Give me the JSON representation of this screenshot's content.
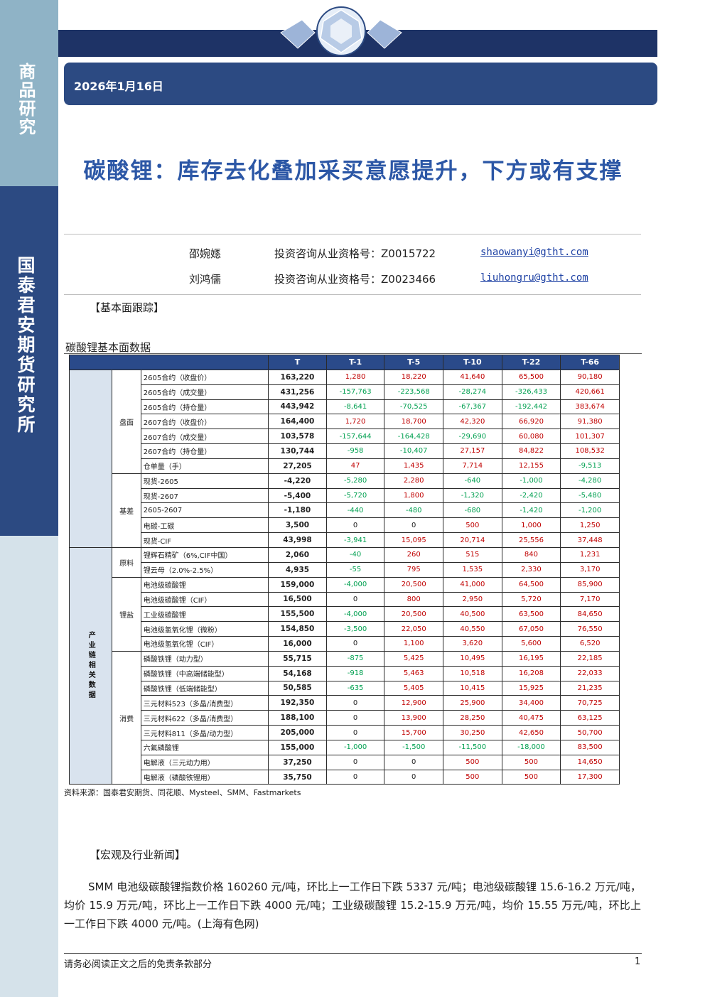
{
  "sidebar": {
    "category": "商品研究",
    "institute": "国泰君安期货研究所"
  },
  "header": {
    "date": "2026年1月16日"
  },
  "report": {
    "title": "碳酸锂：库存去化叠加采买意愿提升，下方或有支撑"
  },
  "authors": [
    {
      "name": "邵婉嫕",
      "cert": "投资咨询从业资格号：Z0015722",
      "email": "shaowanyi@gtht.com"
    },
    {
      "name": "刘鸿儒",
      "cert": "投资咨询从业资格号：Z0023466",
      "email": "liuhongru@gtht.com"
    }
  ],
  "sections": {
    "fundamentals": "【基本面跟踪】",
    "table_caption": "碳酸锂基本面数据",
    "source": "资料来源：国泰君安期货、同花顺、Mysteel、SMM、Fastmarkets",
    "news": "【宏观及行业新闻】",
    "news_paragraph": "SMM 电池级碳酸锂指数价格 160260 元/吨，环比上一工作日下跌 5337 元/吨；电池级碳酸锂 15.6-16.2 万元/吨，均价 15.9 万元/吨，环比上一工作日下跌 4000 元/吨；工业级碳酸锂 15.2-15.9 万元/吨，均价 15.55 万元/吨，环比上一工作日下跌 4000 元/吨。(上海有色网)"
  },
  "table": {
    "headers": [
      "T",
      "T-1",
      "T-5",
      "T-10",
      "T-22",
      "T-66"
    ],
    "categories": {
      "chain": "产业链相关数据",
      "futures": "盘面",
      "basis": "基差",
      "raw": "原料",
      "salt": "锂盐",
      "consume": "消费"
    },
    "rows": [
      [
        "2605合约（收盘价）",
        "163,220",
        "1,280",
        "18,220",
        "41,640",
        "65,500",
        "90,180"
      ],
      [
        "2605合约（成交量）",
        "431,256",
        "-157,763",
        "-223,568",
        "-28,274",
        "-326,433",
        "420,661"
      ],
      [
        "2605合约（持仓量）",
        "443,942",
        "-8,641",
        "-70,525",
        "-67,367",
        "-192,442",
        "383,674"
      ],
      [
        "2607合约（收盘价）",
        "164,400",
        "1,720",
        "18,700",
        "42,320",
        "66,920",
        "91,380"
      ],
      [
        "2607合约（成交量）",
        "103,578",
        "-157,644",
        "-164,428",
        "-29,690",
        "60,080",
        "101,307"
      ],
      [
        "2607合约（持仓量）",
        "130,744",
        "-958",
        "-10,407",
        "27,157",
        "84,822",
        "108,532"
      ],
      [
        "仓单量（手）",
        "27,205",
        "47",
        "1,435",
        "7,714",
        "12,155",
        "-9,513"
      ],
      [
        "现货-2605",
        "-4,220",
        "-5,280",
        "2,280",
        "-640",
        "-1,000",
        "-4,280"
      ],
      [
        "现货-2607",
        "-5,400",
        "-5,720",
        "1,800",
        "-1,320",
        "-2,420",
        "-5,480"
      ],
      [
        "2605-2607",
        "-1,180",
        "-440",
        "-480",
        "-680",
        "-1,420",
        "-1,200"
      ],
      [
        "电碳-工碳",
        "3,500",
        "0",
        "0",
        "500",
        "1,000",
        "1,250"
      ],
      [
        "现货-CIF",
        "43,998",
        "-3,941",
        "15,095",
        "20,714",
        "25,556",
        "37,448"
      ],
      [
        "锂辉石精矿（6%,CIF中国）",
        "2,060",
        "-40",
        "260",
        "515",
        "840",
        "1,231"
      ],
      [
        "锂云母（2.0%-2.5%）",
        "4,935",
        "-55",
        "795",
        "1,535",
        "2,330",
        "3,170"
      ],
      [
        "电池级碳酸锂",
        "159,000",
        "-4,000",
        "20,500",
        "41,000",
        "64,500",
        "85,900"
      ],
      [
        "电池级碳酸锂（CIF）",
        "16,500",
        "0",
        "800",
        "2,950",
        "5,720",
        "7,170"
      ],
      [
        "工业级碳酸锂",
        "155,500",
        "-4,000",
        "20,500",
        "40,500",
        "63,500",
        "84,650"
      ],
      [
        "电池级氢氧化锂（微粉）",
        "154,850",
        "-3,500",
        "22,050",
        "40,550",
        "67,050",
        "76,550"
      ],
      [
        "电池级氢氧化锂（CIF）",
        "16,000",
        "0",
        "1,100",
        "3,620",
        "5,600",
        "6,520"
      ],
      [
        "磷酸铁锂（动力型）",
        "55,715",
        "-875",
        "5,425",
        "10,495",
        "16,195",
        "22,185"
      ],
      [
        "磷酸铁锂（中高端储能型）",
        "54,168",
        "-918",
        "5,463",
        "10,518",
        "16,208",
        "22,033"
      ],
      [
        "磷酸铁锂（低端储能型）",
        "50,585",
        "-635",
        "5,405",
        "10,415",
        "15,925",
        "21,235"
      ],
      [
        "三元材料523（多晶/消费型）",
        "192,350",
        "0",
        "12,900",
        "25,900",
        "34,400",
        "70,725"
      ],
      [
        "三元材料622（多晶/消费型）",
        "188,100",
        "0",
        "13,900",
        "28,250",
        "40,475",
        "63,125"
      ],
      [
        "三元材料811（多晶/动力型）",
        "205,000",
        "0",
        "15,700",
        "30,250",
        "42,650",
        "50,700"
      ],
      [
        "六氟磷酸锂",
        "155,000",
        "-1,000",
        "-1,500",
        "-11,500",
        "-18,000",
        "83,500"
      ],
      [
        "电解液（三元动力用）",
        "37,250",
        "0",
        "0",
        "500",
        "500",
        "14,650"
      ],
      [
        "电解液（磷酸铁锂用）",
        "35,750",
        "0",
        "0",
        "500",
        "500",
        "17,300"
      ]
    ]
  },
  "footer": {
    "disclaimer": "请务必阅读正文之后的免责条款部分",
    "page": "1"
  },
  "colors": {
    "brand_dark": "#1e3366",
    "brand": "#2c4a82",
    "title_blue": "#2c57a6",
    "up": "#c00000",
    "down": "#00a050"
  }
}
